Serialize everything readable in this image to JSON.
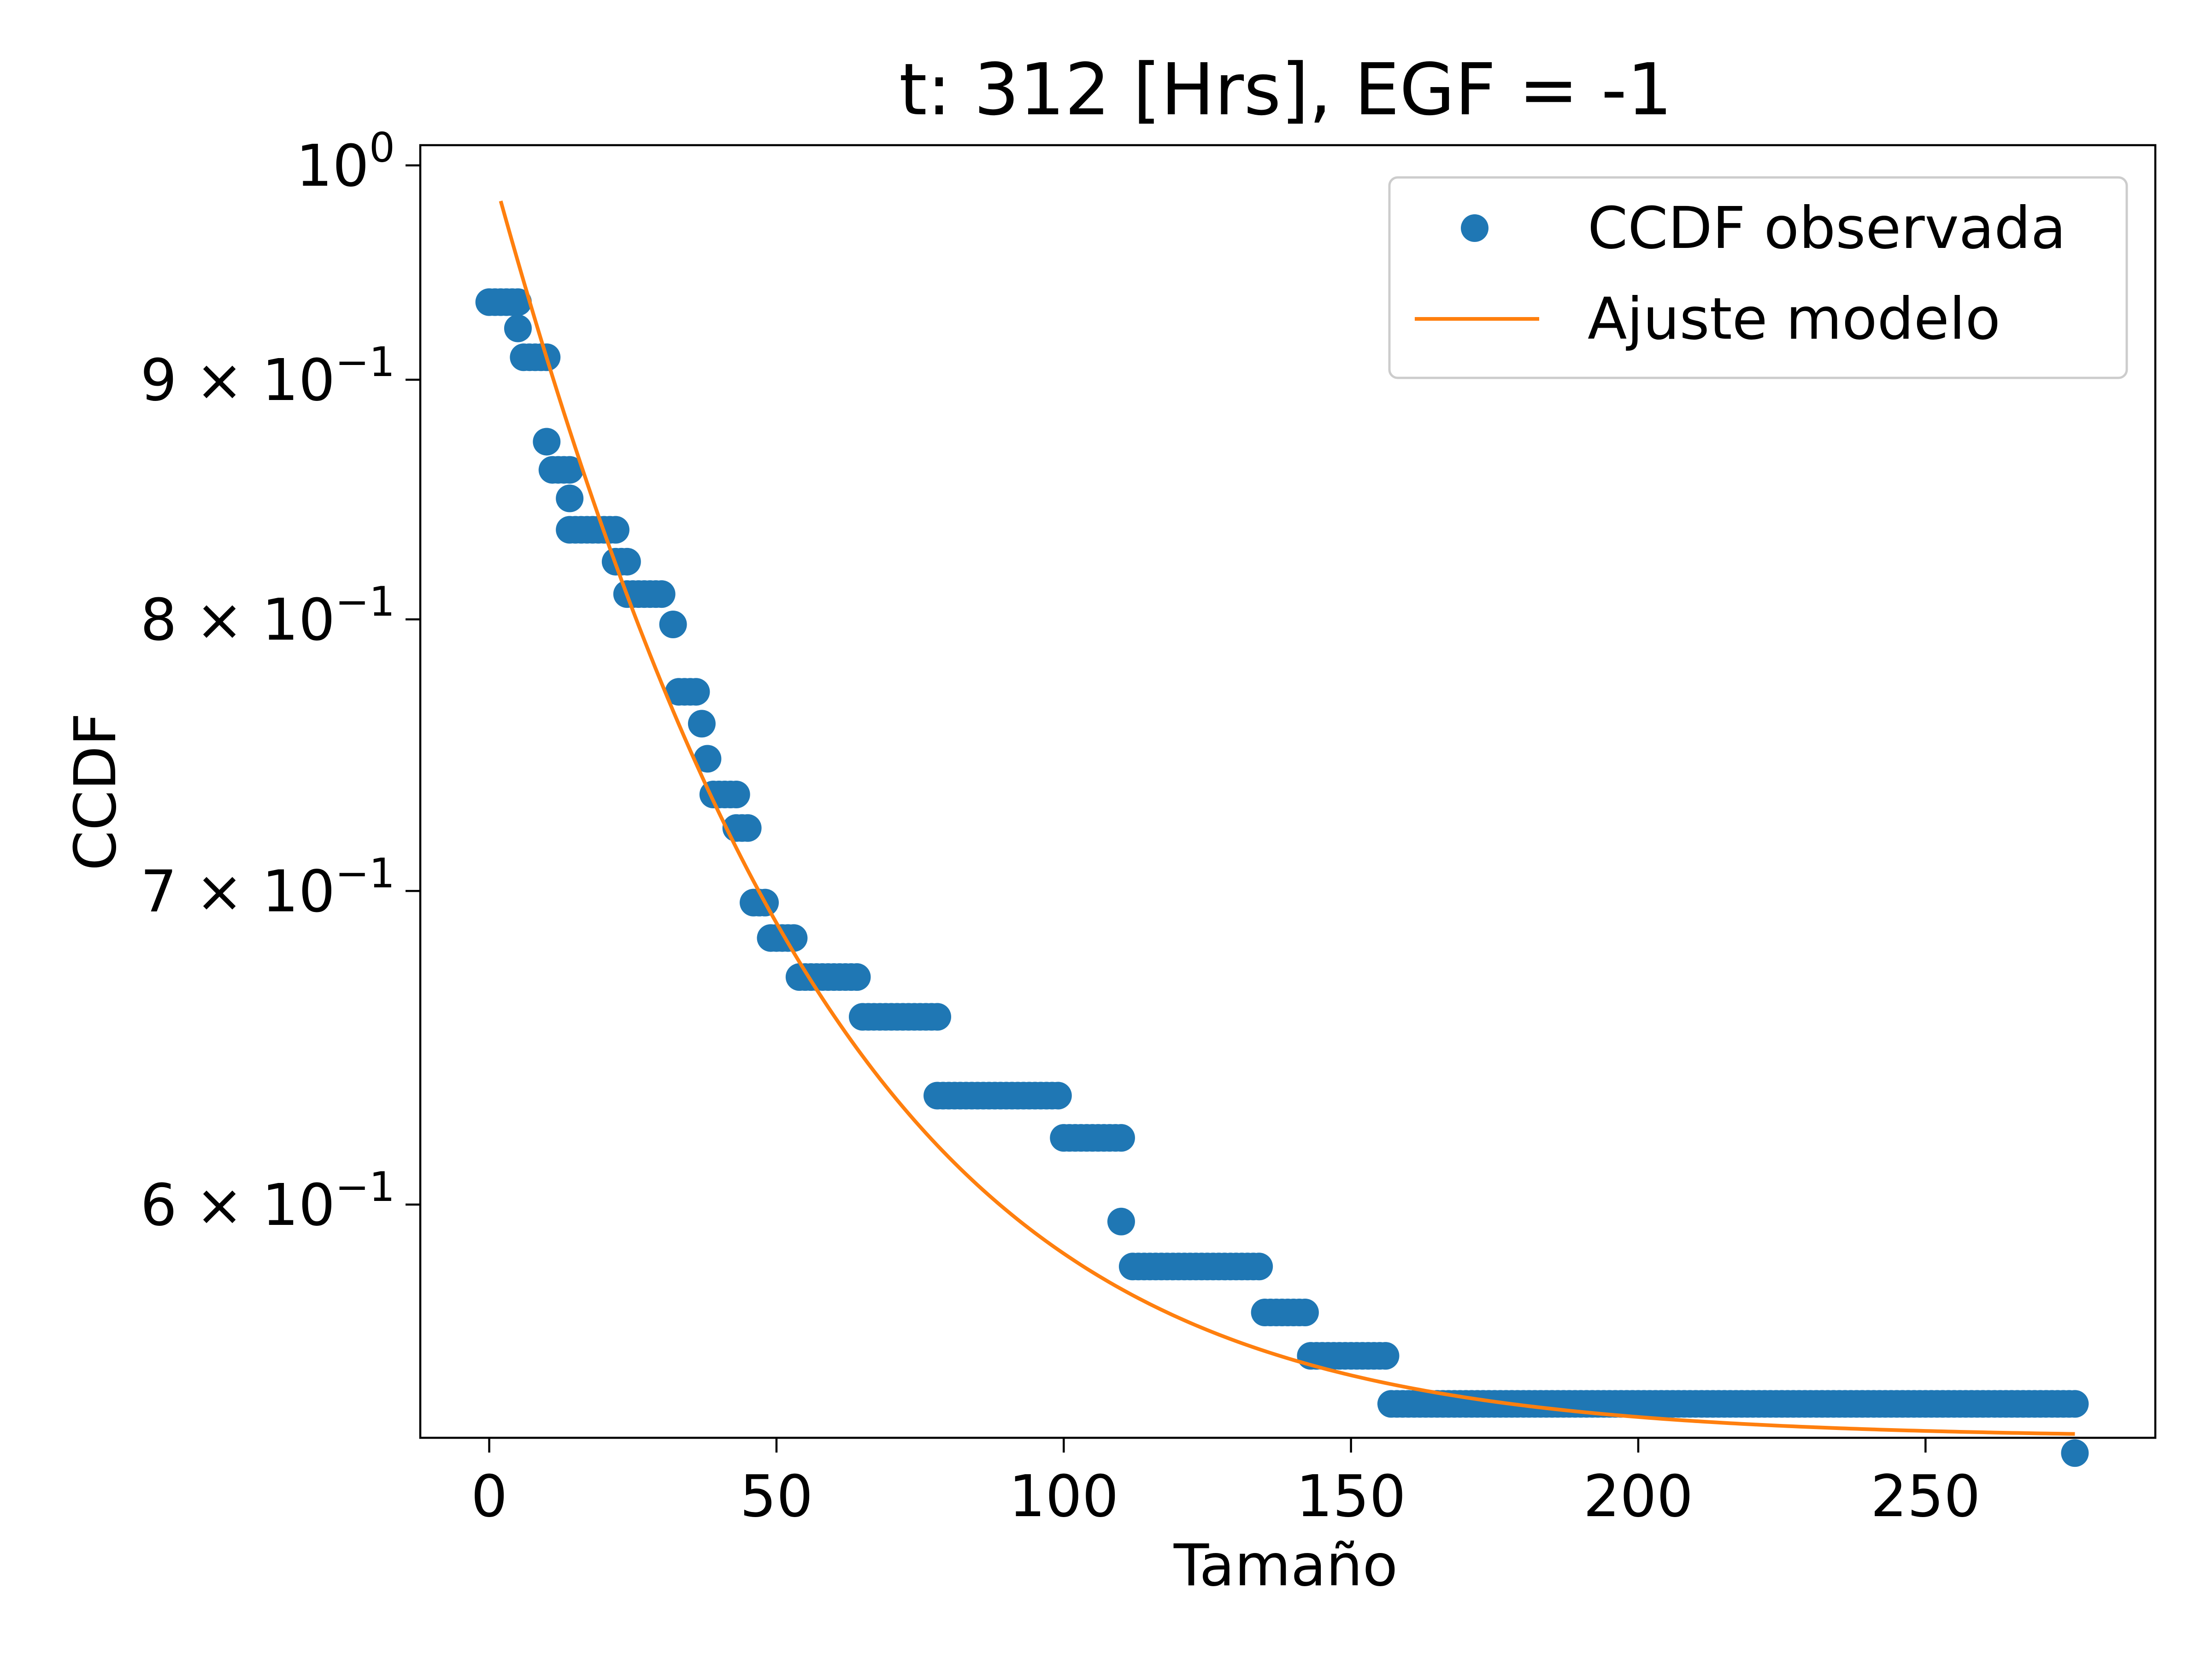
{
  "chart_data": {
    "type": "scatter",
    "title": "t: 312 [Hrs], EGF = -1",
    "xlabel": "Tamaño",
    "ylabel": "CCDF",
    "xlim": [
      -12,
      290
    ],
    "ylim": [
      0.535,
      1.01
    ],
    "y_scale": "log",
    "grid": false,
    "legend_position": "upper right",
    "x_ticks": [
      {
        "value": 0,
        "label": "0"
      },
      {
        "value": 50,
        "label": "50"
      },
      {
        "value": 100,
        "label": "100"
      },
      {
        "value": 150,
        "label": "150"
      },
      {
        "value": 200,
        "label": "200"
      },
      {
        "value": 250,
        "label": "250"
      }
    ],
    "y_ticks": [
      {
        "value": 1.0,
        "base": "10",
        "exp": "0"
      },
      {
        "value": 0.9,
        "base": "9 × 10",
        "exp": "−1"
      },
      {
        "value": 0.8,
        "base": "8 × 10",
        "exp": "−1"
      },
      {
        "value": 0.7,
        "base": "7 × 10",
        "exp": "−1"
      },
      {
        "value": 0.6,
        "base": "6 × 10",
        "exp": "−1"
      }
    ],
    "series": [
      {
        "name": "CCDF observada",
        "kind": "scatter",
        "color": "#1f77b4",
        "segments": [
          {
            "x_start": 0,
            "x_end": 5,
            "y": 0.935
          },
          {
            "x_start": 5,
            "x_end": 5,
            "y": 0.923
          },
          {
            "x_start": 6,
            "x_end": 10,
            "y": 0.91
          },
          {
            "x_start": 10,
            "x_end": 10,
            "y": 0.873
          },
          {
            "x_start": 11,
            "x_end": 14,
            "y": 0.861
          },
          {
            "x_start": 14,
            "x_end": 14,
            "y": 0.849
          },
          {
            "x_start": 14,
            "x_end": 22,
            "y": 0.836
          },
          {
            "x_start": 22,
            "x_end": 24,
            "y": 0.823
          },
          {
            "x_start": 24,
            "x_end": 30,
            "y": 0.81
          },
          {
            "x_start": 32,
            "x_end": 32,
            "y": 0.798
          },
          {
            "x_start": 33,
            "x_end": 36,
            "y": 0.772
          },
          {
            "x_start": 37,
            "x_end": 37,
            "y": 0.76
          },
          {
            "x_start": 38,
            "x_end": 38,
            "y": 0.747
          },
          {
            "x_start": 39,
            "x_end": 43,
            "y": 0.734
          },
          {
            "x_start": 43,
            "x_end": 45,
            "y": 0.722
          },
          {
            "x_start": 46,
            "x_end": 48,
            "y": 0.696
          },
          {
            "x_start": 49,
            "x_end": 53,
            "y": 0.684
          },
          {
            "x_start": 54,
            "x_end": 64,
            "y": 0.671
          },
          {
            "x_start": 65,
            "x_end": 78,
            "y": 0.658
          },
          {
            "x_start": 78,
            "x_end": 99,
            "y": 0.633
          },
          {
            "x_start": 100,
            "x_end": 110,
            "y": 0.62
          },
          {
            "x_start": 110,
            "x_end": 110,
            "y": 0.595
          },
          {
            "x_start": 112,
            "x_end": 134,
            "y": 0.582
          },
          {
            "x_start": 135,
            "x_end": 142,
            "y": 0.569
          },
          {
            "x_start": 143,
            "x_end": 156,
            "y": 0.557
          },
          {
            "x_start": 157,
            "x_end": 276,
            "y": 0.544
          },
          {
            "x_start": 276,
            "x_end": 276,
            "y": 0.531
          }
        ]
      },
      {
        "name": "Ajuste modelo",
        "kind": "line",
        "color": "#ff7f0e",
        "function": "a + b*exp(-x/c)",
        "params": {
          "a": 0.535,
          "b": 0.468,
          "c": 45
        },
        "x_range": [
          2,
          276
        ]
      }
    ]
  }
}
